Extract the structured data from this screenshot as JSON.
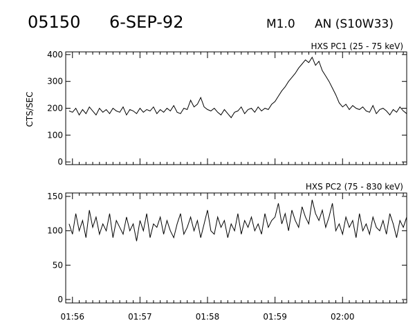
{
  "header": {
    "event_id": "05150",
    "date": "6-SEP-92",
    "flare_class": "M1.0",
    "location": "AN (S10W33)"
  },
  "chart_data": [
    {
      "type": "line",
      "title": "HXS PC1 (25 - 75 keV)",
      "ylabel": "CTS/SEC",
      "ylim": [
        -10,
        410
      ],
      "yticks": [
        0,
        100,
        200,
        300,
        400
      ],
      "xlim": [
        -0.1,
        4.95
      ],
      "xticks": [
        0,
        1,
        2,
        3,
        4
      ],
      "xtick_labels": [
        "01:56",
        "01:57",
        "01:58",
        "01:59",
        "02:00"
      ],
      "grid": false,
      "series": [
        {
          "x_start": -0.05,
          "x_step": 0.05,
          "values": [
            190,
            185,
            200,
            175,
            195,
            180,
            205,
            190,
            175,
            200,
            185,
            195,
            180,
            200,
            190,
            185,
            205,
            175,
            195,
            190,
            180,
            200,
            185,
            195,
            190,
            205,
            180,
            195,
            185,
            200,
            190,
            210,
            185,
            180,
            200,
            195,
            230,
            205,
            215,
            240,
            205,
            195,
            190,
            200,
            185,
            175,
            195,
            180,
            165,
            185,
            190,
            205,
            180,
            195,
            200,
            185,
            205,
            190,
            200,
            195,
            215,
            225,
            245,
            265,
            280,
            300,
            315,
            330,
            350,
            365,
            380,
            370,
            390,
            360,
            375,
            340,
            320,
            300,
            275,
            250,
            220,
            205,
            215,
            195,
            210,
            200,
            195,
            205,
            190,
            185,
            210,
            180,
            195,
            200,
            190,
            175,
            195,
            185,
            205,
            190,
            180,
            200,
            185,
            195,
            190,
            200,
            180,
            195,
            205,
            185,
            200,
            190,
            195,
            180,
            200,
            190,
            185,
            205,
            195,
            190,
            200,
            185,
            195,
            200,
            190,
            205,
            185,
            200,
            195,
            190,
            185,
            200,
            195,
            205,
            190,
            180,
            195
          ]
        }
      ]
    },
    {
      "type": "line",
      "title": "HXS PC2 (75 - 830 keV)",
      "ylim": [
        -5,
        155
      ],
      "yticks": [
        0,
        50,
        100,
        150
      ],
      "xlim": [
        -0.1,
        4.95
      ],
      "xticks": [
        0,
        1,
        2,
        3,
        4
      ],
      "xtick_labels": [
        "01:56",
        "01:57",
        "01:58",
        "01:59",
        "02:00"
      ],
      "grid": false,
      "series": [
        {
          "x_start": -0.05,
          "x_step": 0.05,
          "values": [
            110,
            95,
            125,
            100,
            115,
            90,
            130,
            105,
            120,
            95,
            110,
            100,
            125,
            90,
            115,
            105,
            95,
            120,
            100,
            110,
            85,
            115,
            100,
            125,
            90,
            110,
            105,
            120,
            95,
            115,
            100,
            90,
            110,
            125,
            95,
            105,
            120,
            100,
            115,
            90,
            110,
            130,
            100,
            95,
            120,
            105,
            115,
            90,
            110,
            100,
            125,
            95,
            115,
            105,
            120,
            100,
            110,
            95,
            125,
            105,
            115,
            120,
            140,
            110,
            125,
            100,
            130,
            115,
            105,
            135,
            120,
            110,
            145,
            125,
            115,
            130,
            105,
            120,
            140,
            100,
            110,
            95,
            120,
            105,
            115,
            90,
            125,
            100,
            110,
            95,
            120,
            105,
            100,
            115,
            95,
            125,
            110,
            90,
            115,
            105,
            120,
            100,
            110,
            95,
            125,
            90,
            115,
            105,
            100,
            120,
            95,
            110,
            80,
            115,
            100,
            125,
            105,
            95,
            120,
            110,
            100,
            115,
            90,
            125,
            105,
            110,
            95,
            120,
            100,
            115,
            90,
            110,
            105,
            125,
            95,
            110,
            100
          ]
        }
      ]
    }
  ]
}
